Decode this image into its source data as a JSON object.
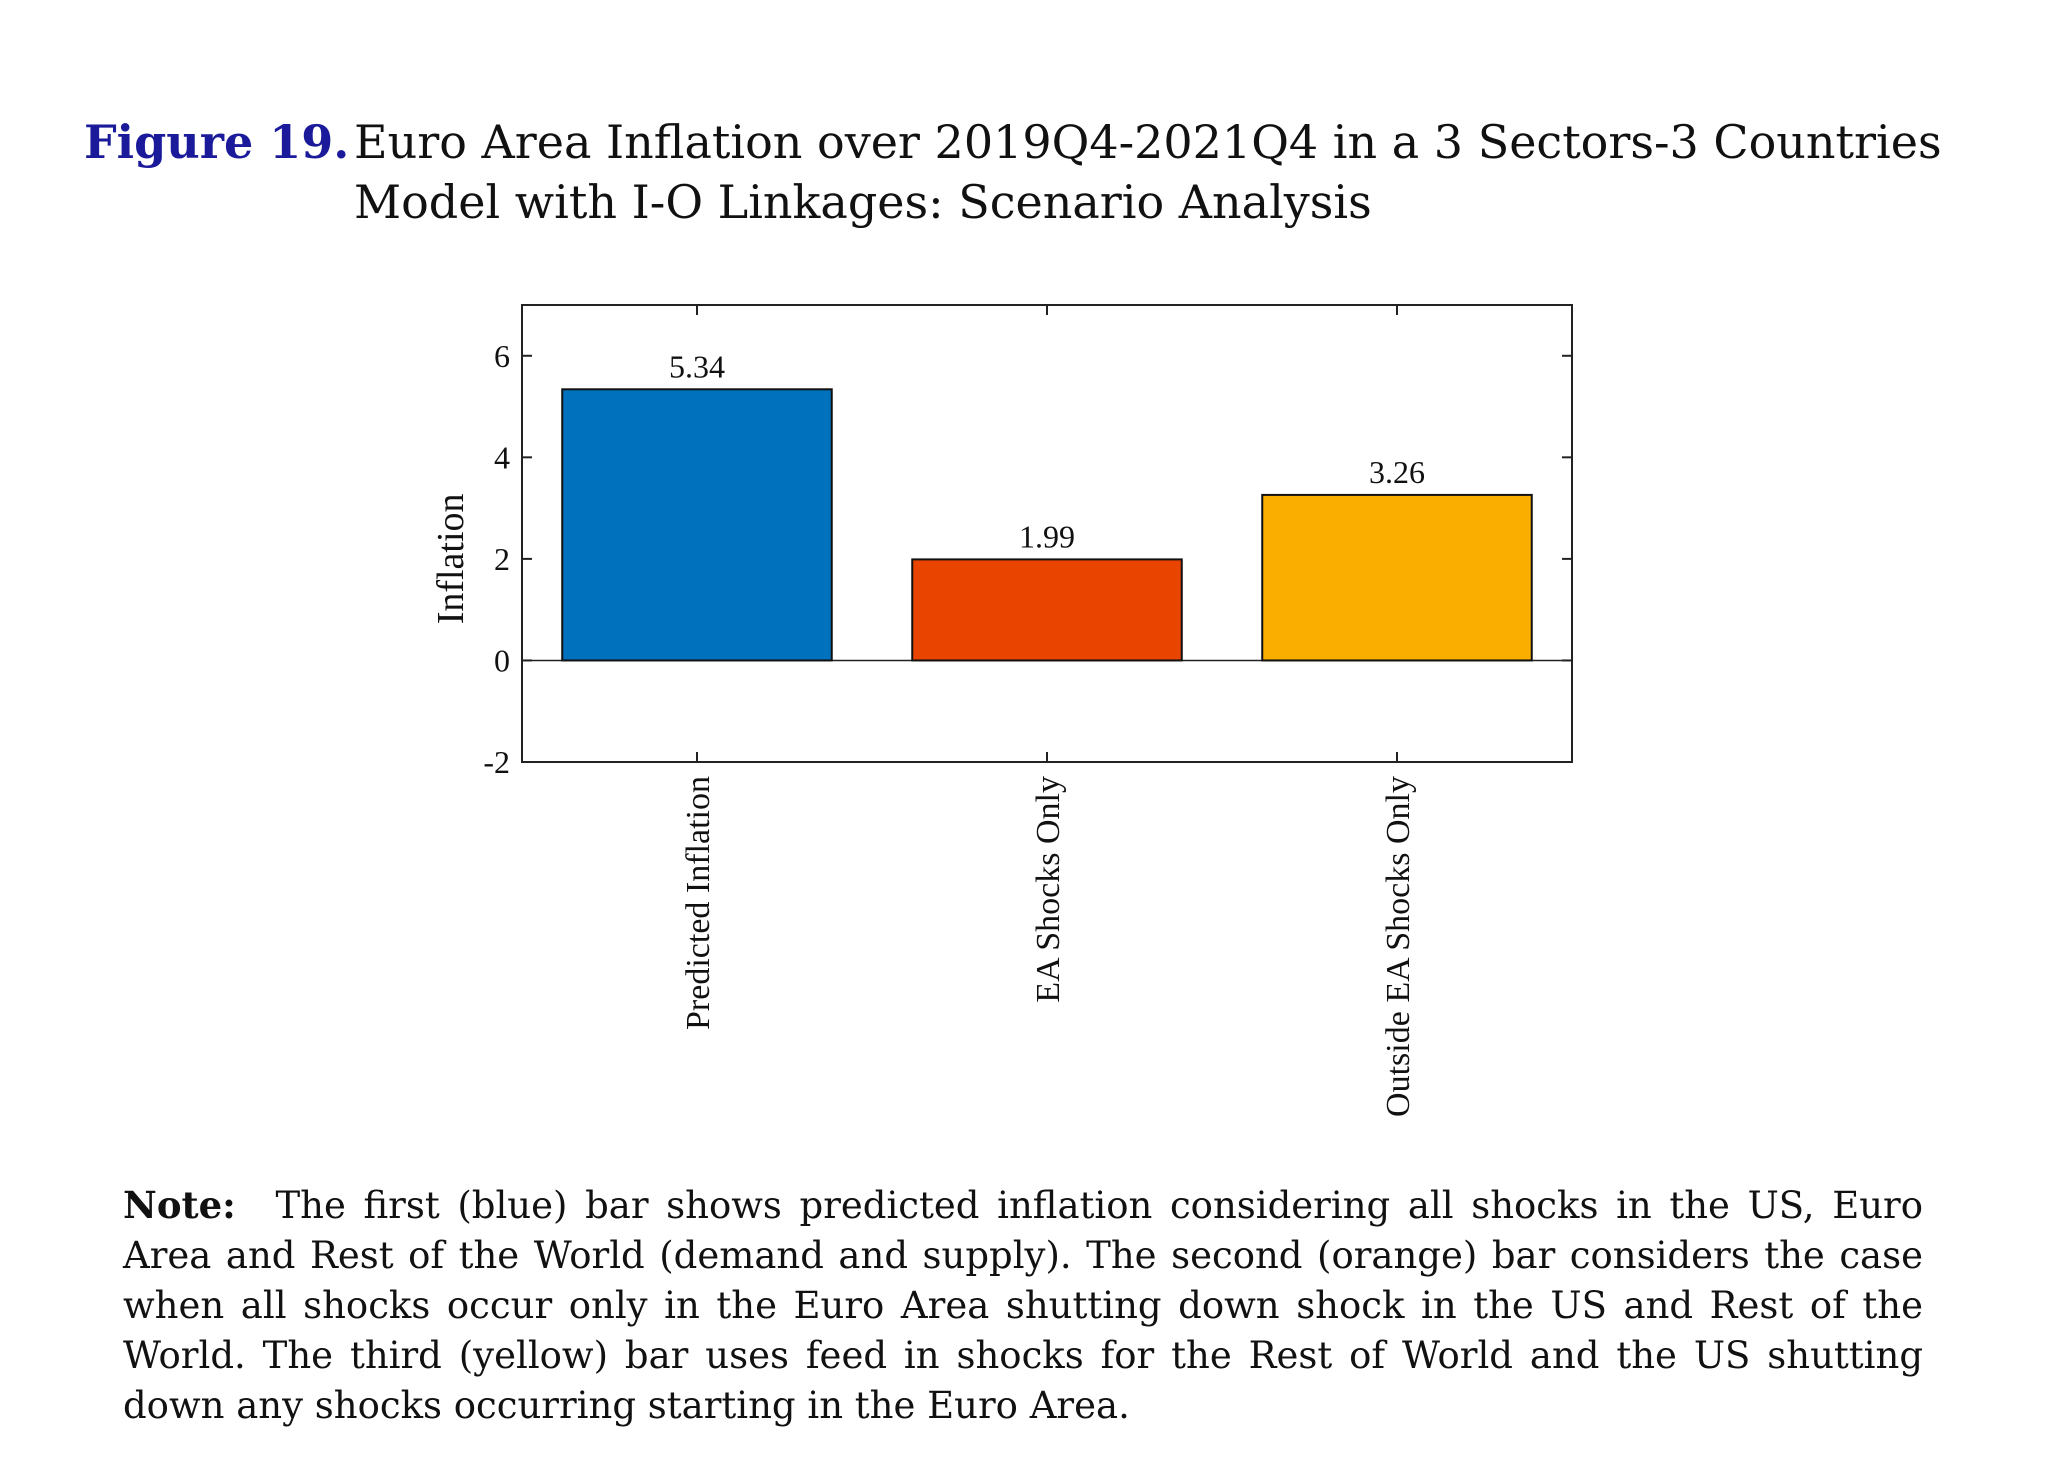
{
  "figure": {
    "label": "Figure 19.",
    "title": "Euro Area Inflation over 2019Q4-2021Q4 in a 3 Sectors-3 Countries Model with I-O Linkages: Scenario Analysis"
  },
  "note": {
    "label": "Note:",
    "text": "The first (blue) bar shows predicted inflation considering all shocks in the US, Euro Area and Rest of the World (demand and supply). The second (orange) bar considers the case when all shocks occur only in the Euro Area shutting down shock in the US and Rest of the World. The third (yellow) bar uses feed in shocks for the Rest of World and the US shutting down any shocks occurring starting in the Euro Area."
  },
  "chart_data": {
    "type": "bar",
    "categories": [
      "Predicted Inflation",
      "EA Shocks Only",
      "Outside EA Shocks Only"
    ],
    "values": [
      5.34,
      1.99,
      3.26
    ],
    "value_labels": [
      "5.34",
      "1.99",
      "3.26"
    ],
    "colors": [
      "#0072BD",
      "#EA4500",
      "#F9AE00"
    ],
    "ylabel": "Inflation",
    "xlabel": "",
    "ylim": [
      -2,
      7
    ],
    "yticks": [
      -2,
      0,
      2,
      4,
      6
    ],
    "ytick_labels": [
      "-2",
      "0",
      "2",
      "4",
      "6"
    ],
    "grid": false,
    "x_tick_label_orientation": "vertical"
  }
}
